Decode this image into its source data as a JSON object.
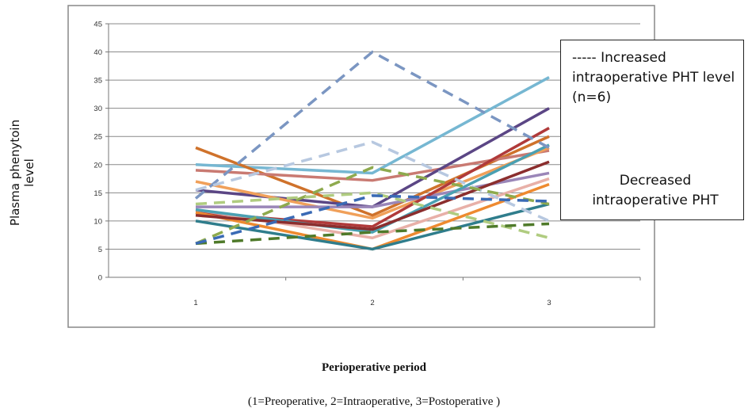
{
  "chart_data": {
    "type": "line",
    "title": "",
    "xlabel": "Perioperative period",
    "ylabel": "Plasma phenytoin level",
    "caption": "(1=Preoperative, 2=Intraoperative, 3=Postoperative )",
    "categories": [
      "1",
      "2",
      "3"
    ],
    "ylim": [
      0,
      45
    ],
    "yticks": [
      "0",
      "5",
      "10",
      "15",
      "20",
      "25",
      "30",
      "35",
      "40",
      "45"
    ],
    "grid": true,
    "legend": {
      "increased": "----- Increased intraoperative PHT level (n=6)",
      "decreased": "Decreased intraoperative PHT"
    },
    "series": [
      {
        "values": [
          14.0,
          40.0,
          23.0
        ],
        "color": "#7b96c2",
        "dashed": true
      },
      {
        "values": [
          15.5,
          24.0,
          10.0
        ],
        "color": "#b7c8e0",
        "dashed": true
      },
      {
        "values": [
          6.0,
          19.5,
          13.0
        ],
        "color": "#8eaa4e",
        "dashed": true
      },
      {
        "values": [
          13.0,
          15.0,
          7.0
        ],
        "color": "#b0cc80",
        "dashed": true
      },
      {
        "values": [
          6.0,
          8.0,
          9.5
        ],
        "color": "#4f7a2a",
        "dashed": true
      },
      {
        "values": [
          6.0,
          14.5,
          13.5
        ],
        "color": "#3a6ab5",
        "dashed": true
      },
      {
        "values": [
          20.0,
          18.5,
          35.5
        ],
        "color": "#76b7d2",
        "dashed": false
      },
      {
        "values": [
          23.0,
          11.0,
          25.0
        ],
        "color": "#cf722b",
        "dashed": false
      },
      {
        "values": [
          19.0,
          17.2,
          22.5
        ],
        "color": "#c97a72",
        "dashed": false
      },
      {
        "values": [
          15.5,
          12.5,
          30.0
        ],
        "color": "#5b4685",
        "dashed": false
      },
      {
        "values": [
          17.0,
          10.5,
          23.0
        ],
        "color": "#f0a05a",
        "dashed": false
      },
      {
        "values": [
          12.5,
          12.5,
          18.5
        ],
        "color": "#9a86b8",
        "dashed": false
      },
      {
        "values": [
          11.5,
          9.0,
          26.5
        ],
        "color": "#b03a3a",
        "dashed": false
      },
      {
        "values": [
          12.0,
          7.0,
          17.5
        ],
        "color": "#e8b0a8",
        "dashed": false
      },
      {
        "values": [
          11.5,
          5.0,
          16.5
        ],
        "color": "#ee8a30",
        "dashed": false
      },
      {
        "values": [
          10.0,
          5.0,
          13.0
        ],
        "color": "#2f7d8c",
        "dashed": false
      },
      {
        "values": [
          12.0,
          8.0,
          23.5
        ],
        "color": "#4aa0b2",
        "dashed": false
      },
      {
        "values": [
          11.0,
          8.5,
          20.5
        ],
        "color": "#8b2e2e",
        "dashed": false
      }
    ]
  }
}
